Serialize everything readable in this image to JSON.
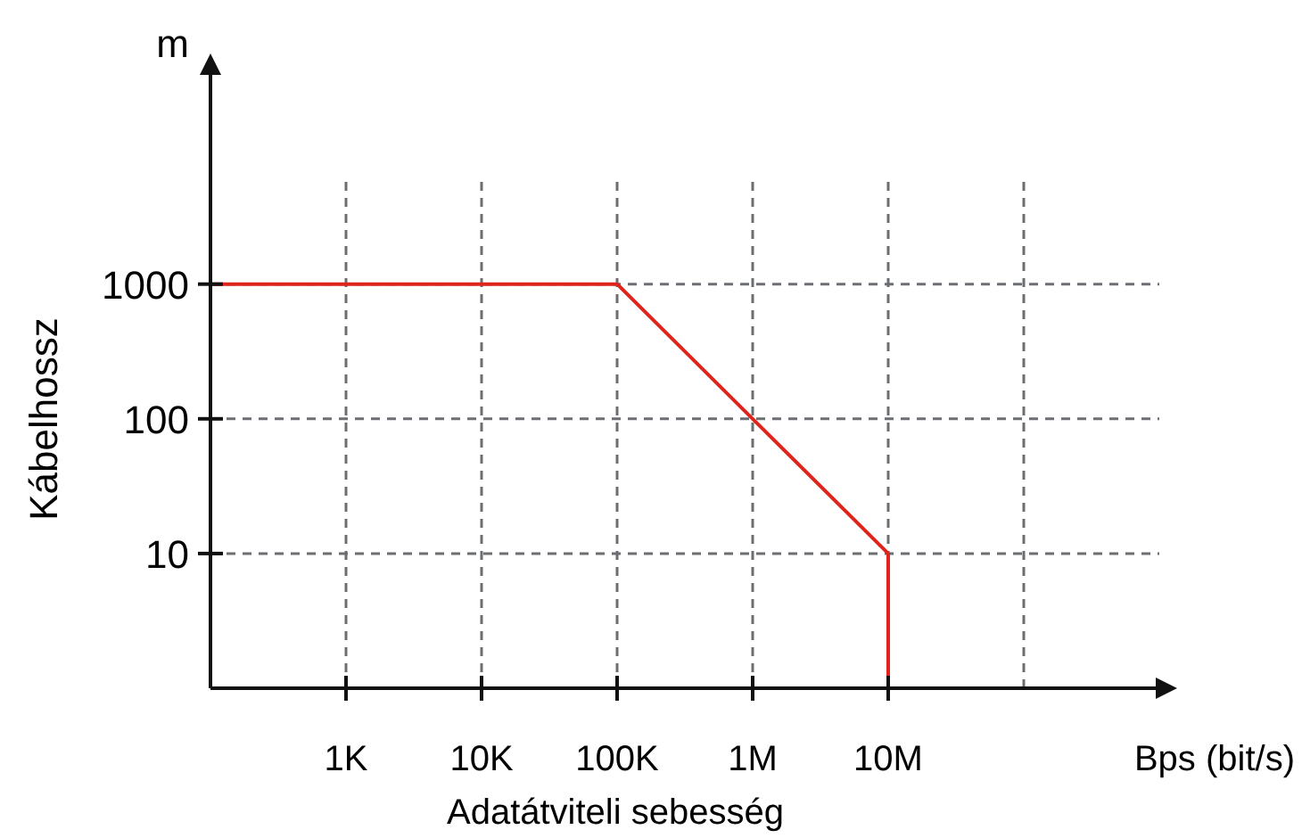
{
  "chart_data": {
    "type": "line",
    "xlabel": "Adatátviteli sebesség",
    "ylabel": "Kábelhossz",
    "annotations": [
      "m",
      "Bps (bit/s)"
    ],
    "log": "xy",
    "grid": true,
    "marker": "none",
    "line_style": "solid",
    "xlim": [
      100,
      1000000000
    ],
    "ylim": [
      1,
      38000
    ],
    "xticks": [
      {
        "value": 1000,
        "label": "1K"
      },
      {
        "value": 10000,
        "label": "10K"
      },
      {
        "value": 100000,
        "label": "100K"
      },
      {
        "value": 1000000,
        "label": "1M"
      },
      {
        "value": 10000000,
        "label": "10M"
      },
      {
        "value": 100000000,
        "label": null
      }
    ],
    "yticks": [
      10,
      100,
      1000
    ],
    "series": [
      {
        "color": "#e0231b",
        "x": [
          100,
          100000,
          1000000,
          10000000,
          10000000
        ],
        "values": [
          1000,
          1000,
          100,
          10,
          1.2
        ]
      }
    ]
  }
}
